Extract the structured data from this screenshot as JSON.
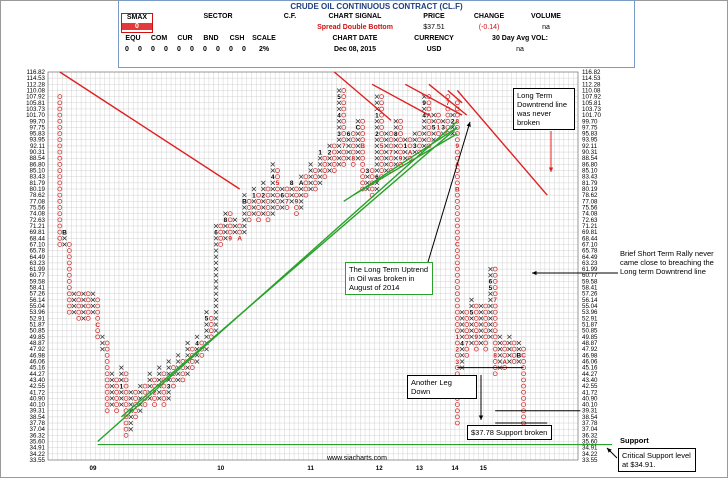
{
  "header": {
    "title": "CRUDE OIL CONTINUOUS CONTRACT (CL.F)",
    "smax_label": "SMAX",
    "smax_value": "0",
    "sector_label": "SECTOR",
    "cf_label": "C.F.",
    "chart_signal_label": "CHART SIGNAL",
    "price_label": "PRICE",
    "change_label": "CHANGE",
    "volume_label": "VOLUME",
    "chart_signal_value": "Spread Double Bottom",
    "price_value": "$37.51",
    "change_value": "(-0.14)",
    "volume_value": "na",
    "cols": [
      "EQU",
      "COM",
      "CUR",
      "BND",
      "CSH",
      "SCALE"
    ],
    "col_values": [
      "0",
      "0",
      "0",
      "0",
      "0",
      "0",
      "0",
      "0",
      "0",
      "0",
      "0"
    ],
    "scale_value": "2%",
    "chart_date_label": "CHART DATE",
    "chart_date_value": "Dec 08, 2015",
    "currency_label": "CURRENCY",
    "currency_value": "USD",
    "avg_vol_label": "30 Day Avg VOL:",
    "avg_vol_value": "na"
  },
  "colors": {
    "x": "#2a2a2a",
    "o": "#d02020",
    "grid": "#c8c8c8",
    "trend_red": "#e02020",
    "trend_green": "#2aa12a",
    "annot_blue": "#2060d0"
  },
  "chart_data": {
    "type": "point-and-figure",
    "y_ticks": [
      "116.82",
      "114.53",
      "112.28",
      "110.08",
      "107.92",
      "105.81",
      "103.73",
      "101.70",
      "99.70",
      "97.75",
      "95.83",
      "93.95",
      "92.11",
      "90.31",
      "88.54",
      "86.80",
      "85.10",
      "83.43",
      "81.79",
      "80.19",
      "78.62",
      "77.08",
      "75.56",
      "74.08",
      "72.63",
      "71.21",
      "69.81",
      "68.44",
      "67.10",
      "65.78",
      "64.49",
      "63.23",
      "61.99",
      "60.77",
      "59.58",
      "58.41",
      "57.26",
      "56.14",
      "55.04",
      "53.96",
      "52.91",
      "51.87",
      "50.85",
      "49.85",
      "48.87",
      "47.92",
      "46.98",
      "46.06",
      "45.16",
      "44.27",
      "43.40",
      "42.55",
      "41.72",
      "40.90",
      "40.10",
      "39.31",
      "38.54",
      "37.78",
      "37.04",
      "36.32",
      "35.60",
      "34.91",
      "34.22",
      "33.55"
    ],
    "x_labels": [
      {
        "label": "09",
        "col": 19
      },
      {
        "label": "10",
        "col": 73
      },
      {
        "label": "11",
        "col": 111
      },
      {
        "label": "12",
        "col": 140
      },
      {
        "label": "13",
        "col": 157
      },
      {
        "label": "14",
        "col": 172
      },
      {
        "label": "15",
        "col": 184
      }
    ],
    "columns": [
      {
        "col": 2,
        "type": "O",
        "top": "107.92",
        "bottom": "67.10"
      },
      {
        "col": 3,
        "type": "X",
        "top": "69.81",
        "bottom": "67.10",
        "marks": {
          "69.81": "B"
        }
      },
      {
        "col": 4,
        "type": "O",
        "top": "67.10",
        "bottom": "53.96"
      },
      {
        "col": 5,
        "type": "X",
        "top": "57.26",
        "bottom": "53.96"
      },
      {
        "col": 6,
        "type": "O",
        "top": "57.26",
        "bottom": "52.91"
      },
      {
        "col": 7,
        "type": "X",
        "top": "57.26",
        "bottom": "52.91"
      },
      {
        "col": 8,
        "type": "O",
        "top": "57.26",
        "bottom": "52.91"
      },
      {
        "col": 9,
        "type": "X",
        "top": "57.26",
        "bottom": "53.96"
      },
      {
        "col": 10,
        "type": "O",
        "top": "56.14",
        "bottom": "49.85",
        "marks": {
          "51.87": "C"
        }
      },
      {
        "col": 11,
        "type": "X",
        "top": "49.85",
        "bottom": "47.92"
      },
      {
        "col": 12,
        "type": "O",
        "top": "48.87",
        "bottom": "39.31"
      },
      {
        "col": 13,
        "type": "X",
        "top": "44.27",
        "bottom": "40.10"
      },
      {
        "col": 14,
        "type": "O",
        "top": "43.40",
        "bottom": "39.31"
      },
      {
        "col": 15,
        "type": "X",
        "top": "45.16",
        "bottom": "40.10",
        "marks": {
          "42.55": "1"
        }
      },
      {
        "col": 16,
        "type": "O",
        "top": "44.27",
        "bottom": "36.32"
      },
      {
        "col": 17,
        "type": "X",
        "top": "41.72",
        "bottom": "37.04"
      },
      {
        "col": 18,
        "type": "O",
        "top": "41.72",
        "bottom": "38.54"
      },
      {
        "col": 19,
        "type": "X",
        "top": "42.55",
        "bottom": "39.31"
      },
      {
        "col": 20,
        "type": "O",
        "top": "42.55",
        "bottom": "40.10"
      },
      {
        "col": 21,
        "type": "X",
        "top": "44.27",
        "bottom": "40.90"
      },
      {
        "col": 22,
        "type": "O",
        "top": "43.40",
        "bottom": "40.10",
        "marks": {
          "41.72": "2"
        }
      },
      {
        "col": 23,
        "type": "X",
        "top": "45.16",
        "bottom": "40.90"
      },
      {
        "col": 24,
        "type": "O",
        "top": "44.27",
        "bottom": "40.10"
      },
      {
        "col": 25,
        "type": "X",
        "top": "46.06",
        "bottom": "40.90",
        "marks": {
          "42.55": "3"
        }
      },
      {
        "col": 26,
        "type": "O",
        "top": "45.16",
        "bottom": "42.55"
      },
      {
        "col": 27,
        "type": "X",
        "top": "46.98",
        "bottom": "43.40"
      },
      {
        "col": 28,
        "type": "O",
        "top": "46.06",
        "bottom": "43.40"
      },
      {
        "col": 29,
        "type": "X",
        "top": "48.87",
        "bottom": "44.27"
      },
      {
        "col": 30,
        "type": "O",
        "top": "47.92",
        "bottom": "45.16"
      },
      {
        "col": 31,
        "type": "X",
        "top": "49.85",
        "bottom": "46.06",
        "marks": {
          "48.87": "4"
        }
      },
      {
        "col": 32,
        "type": "O",
        "top": "48.87",
        "bottom": "46.98"
      },
      {
        "col": 33,
        "type": "X",
        "top": "53.96",
        "bottom": "47.92",
        "marks": {
          "52.91": "5"
        }
      },
      {
        "col": 34,
        "type": "O",
        "top": "52.91",
        "bottom": "49.85"
      },
      {
        "col": 35,
        "type": "X",
        "top": "71.21",
        "bottom": "50.85",
        "marks": {
          "69.81": "6"
        }
      },
      {
        "col": 36,
        "type": "O",
        "top": "71.21",
        "bottom": "67.10"
      },
      {
        "col": 37,
        "type": "X",
        "top": "74.08",
        "bottom": "68.44",
        "marks": {
          "72.63": "8"
        }
      },
      {
        "col": 38,
        "type": "O",
        "top": "74.08",
        "bottom": "68.44",
        "marks": {
          "68.44": "9"
        }
      },
      {
        "col": 39,
        "type": "X",
        "top": "72.63",
        "bottom": "69.81"
      },
      {
        "col": 40,
        "type": "O",
        "top": "71.21",
        "bottom": "68.44",
        "marks": {
          "68.44": "A"
        }
      },
      {
        "col": 41,
        "type": "X",
        "top": "78.62",
        "bottom": "69.81",
        "marks": {
          "77.08": "B"
        }
      },
      {
        "col": 42,
        "type": "O",
        "top": "77.08",
        "bottom": "72.63"
      },
      {
        "col": 43,
        "type": "X",
        "top": "80.19",
        "bottom": "74.08",
        "marks": {
          "78.62": "1"
        }
      },
      {
        "col": 44,
        "type": "O",
        "top": "78.62",
        "bottom": "72.63"
      },
      {
        "col": 45,
        "type": "X",
        "top": "81.79",
        "bottom": "74.08",
        "marks": {
          "78.62": "2"
        }
      },
      {
        "col": 46,
        "type": "O",
        "top": "80.19",
        "bottom": "72.63"
      },
      {
        "col": 47,
        "type": "X",
        "top": "86.80",
        "bottom": "74.08",
        "marks": {
          "83.43": "4"
        }
      },
      {
        "col": 48,
        "type": "O",
        "top": "85.10",
        "bottom": "75.56",
        "marks": {
          "81.79": "5"
        }
      },
      {
        "col": 49,
        "type": "X",
        "top": "80.19",
        "bottom": "75.56",
        "marks": {
          "78.62": "6"
        }
      },
      {
        "col": 50,
        "type": "O",
        "top": "80.19",
        "bottom": "75.56",
        "marks": {
          "77.08": "7"
        }
      },
      {
        "col": 51,
        "type": "X",
        "top": "81.79",
        "bottom": "77.08",
        "marks": {
          "81.79": "8"
        }
      },
      {
        "col": 52,
        "type": "O",
        "top": "80.19",
        "bottom": "74.08",
        "marks": {
          "77.08": "9"
        }
      },
      {
        "col": 53,
        "type": "X",
        "top": "83.43",
        "bottom": "75.56",
        "marks": {
          "81.79": "A"
        }
      },
      {
        "col": 54,
        "type": "O",
        "top": "83.43",
        "bottom": "78.62"
      },
      {
        "col": 55,
        "type": "X",
        "top": "86.80",
        "bottom": "80.19"
      },
      {
        "col": 56,
        "type": "O",
        "top": "85.10",
        "bottom": "80.19"
      },
      {
        "col": 57,
        "type": "X",
        "top": "90.31",
        "bottom": "81.79",
        "marks": {
          "90.31": "1"
        }
      },
      {
        "col": 58,
        "type": "O",
        "top": "88.54",
        "bottom": "83.43"
      },
      {
        "col": 59,
        "type": "X",
        "top": "92.11",
        "bottom": "85.10",
        "marks": {
          "90.31": "2"
        }
      },
      {
        "col": 60,
        "type": "O",
        "top": "92.11",
        "bottom": "85.10"
      },
      {
        "col": 61,
        "type": "X",
        "top": "110.08",
        "bottom": "86.80",
        "marks": {
          "107.92": "5",
          "101.70": "4",
          "95.83": "3"
        }
      },
      {
        "col": 62,
        "type": "O",
        "top": "110.08",
        "bottom": "86.80",
        "marks": {
          "92.11": "7"
        }
      },
      {
        "col": 63,
        "type": "X",
        "top": "95.83",
        "bottom": "88.54",
        "marks": {
          "95.83": "6"
        }
      },
      {
        "col": 64,
        "type": "O",
        "top": "95.83",
        "bottom": "86.80",
        "marks": {
          "88.54": "8"
        }
      },
      {
        "col": 65,
        "type": "X",
        "top": "99.70",
        "bottom": "88.54",
        "marks": {
          "97.75": "C"
        }
      },
      {
        "col": 66,
        "type": "O",
        "top": "99.70",
        "bottom": "80.19",
        "marks": {
          "92.11": "B"
        }
      },
      {
        "col": 67,
        "type": "X",
        "top": "85.10",
        "bottom": "80.19",
        "marks": {
          "85.10": "3"
        }
      },
      {
        "col": 68,
        "type": "O",
        "top": "85.10",
        "bottom": "78.62"
      },
      {
        "col": 69,
        "type": "X",
        "top": "107.92",
        "bottom": "80.19",
        "marks": {
          "101.70": "1",
          "95.83": "2",
          "83.43": "6"
        }
      },
      {
        "col": 70,
        "type": "O",
        "top": "107.92",
        "bottom": "83.43",
        "marks": {
          "92.11": "5"
        }
      },
      {
        "col": 71,
        "type": "X",
        "top": "95.83",
        "bottom": "85.10"
      },
      {
        "col": 72,
        "type": "O",
        "top": "95.83",
        "bottom": "85.10",
        "marks": {
          "90.31": "7"
        }
      },
      {
        "col": 73,
        "type": "X",
        "top": "99.70",
        "bottom": "86.80",
        "marks": {
          "95.83": "8"
        }
      },
      {
        "col": 74,
        "type": "O",
        "top": "99.70",
        "bottom": "86.80",
        "marks": {
          "88.54": "9"
        }
      },
      {
        "col": 75,
        "type": "X",
        "top": "93.95",
        "bottom": "88.54",
        "marks": {
          "92.11": "1"
        }
      },
      {
        "col": 76,
        "type": "O",
        "top": "93.95",
        "bottom": "88.54",
        "marks": {
          "90.31": "A"
        }
      },
      {
        "col": 77,
        "type": "X",
        "top": "95.83",
        "bottom": "90.31",
        "marks": {
          "92.11": "3"
        }
      },
      {
        "col": 78,
        "type": "O",
        "top": "95.83",
        "bottom": "90.31"
      },
      {
        "col": 79,
        "type": "X",
        "top": "107.92",
        "bottom": "92.11",
        "marks": {
          "105.81": "9",
          "101.70": "4"
        }
      },
      {
        "col": 80,
        "type": "O",
        "top": "107.92",
        "bottom": "92.11",
        "marks": {
          "101.70": "A"
        }
      },
      {
        "col": 81,
        "type": "X",
        "top": "101.70",
        "bottom": "93.95",
        "marks": {
          "97.75": "5"
        }
      },
      {
        "col": 82,
        "type": "O",
        "top": "101.70",
        "bottom": "95.83",
        "marks": {
          "97.75": "1"
        }
      },
      {
        "col": 83,
        "type": "X",
        "top": "99.70",
        "bottom": "95.83",
        "marks": {
          "97.75": "3"
        }
      },
      {
        "col": 84,
        "type": "O",
        "top": "107.92",
        "bottom": "95.83",
        "marks": {
          "105.81": "7"
        }
      },
      {
        "col": 85,
        "type": "X",
        "top": "101.70",
        "bottom": "95.83",
        "marks": {
          "99.70": "2"
        }
      },
      {
        "col": 86,
        "type": "O",
        "top": "105.81",
        "bottom": "37.78",
        "marks": {
          "99.70": "8",
          "92.11": "9",
          "86.80": "A",
          "80.19": "B",
          "67.10": "C",
          "49.85": "1",
          "47.92": "2",
          "46.06": "3"
        }
      },
      {
        "col": 87,
        "type": "X",
        "top": "53.96",
        "bottom": "45.16",
        "marks": {
          "48.87": "4"
        }
      },
      {
        "col": 88,
        "type": "O",
        "top": "53.96",
        "bottom": "46.98",
        "marks": {
          "48.87": "7"
        }
      },
      {
        "col": 89,
        "type": "X",
        "top": "56.14",
        "bottom": "48.87",
        "marks": {
          "53.96": "5"
        }
      },
      {
        "col": 90,
        "type": "O",
        "top": "55.04",
        "bottom": "47.92",
        "marks": {
          "49.85": "9"
        }
      },
      {
        "col": 91,
        "type": "X",
        "top": "55.04",
        "bottom": "48.87"
      },
      {
        "col": 92,
        "type": "O",
        "top": "55.04",
        "bottom": "47.92"
      },
      {
        "col": 93,
        "type": "X",
        "top": "61.99",
        "bottom": "49.85",
        "marks": {
          "59.58": "6",
          "58.41": "5"
        }
      },
      {
        "col": 94,
        "type": "O",
        "top": "61.99",
        "bottom": "44.27",
        "marks": {
          "56.14": "7",
          "46.98": "8"
        }
      },
      {
        "col": 95,
        "type": "X",
        "top": "49.85",
        "bottom": "45.16"
      },
      {
        "col": 96,
        "type": "O",
        "top": "48.87",
        "bottom": "45.16",
        "marks": {
          "46.06": "A"
        }
      },
      {
        "col": 97,
        "type": "X",
        "top": "49.85",
        "bottom": "46.06"
      },
      {
        "col": 98,
        "type": "O",
        "top": "48.87",
        "bottom": "46.06"
      },
      {
        "col": 99,
        "type": "X",
        "top": "48.87",
        "bottom": "46.06",
        "marks": {
          "46.98": "B"
        }
      },
      {
        "col": 100,
        "type": "O",
        "top": "47.92",
        "bottom": "37.78",
        "marks": {
          "46.98": "C"
        }
      }
    ],
    "trend_lines_red": [
      {
        "from": [
          "col",
          2,
          "116.82"
        ],
        "to": [
          "col",
          40,
          "80.19"
        ]
      },
      {
        "from": [
          "col",
          60,
          "116.82"
        ],
        "to": [
          "col",
          72,
          "100.00"
        ]
      },
      {
        "from": [
          "col",
          68,
          "112.28"
        ],
        "to": [
          "col",
          80,
          "101.70"
        ]
      },
      {
        "from": [
          "col",
          75,
          "112.28"
        ],
        "to": [
          "col",
          87,
          "101.70"
        ]
      },
      {
        "from": [
          "col",
          80,
          "112.28"
        ],
        "to": [
          "col",
          88,
          "101.70"
        ]
      },
      {
        "from": [
          "col",
          84,
          "110.08"
        ],
        "to": [
          "col",
          87,
          "105.81"
        ]
      },
      {
        "from": [
          "col",
          86,
          "110.08"
        ],
        "to": [
          "col",
          105,
          "78.62"
        ]
      }
    ],
    "trend_lines_green": [
      {
        "from": [
          "col",
          10,
          "35.60"
        ],
        "to": [
          "col",
          86,
          "99.70"
        ]
      },
      {
        "from": [
          "col",
          15,
          "38.54"
        ],
        "to": [
          "col",
          86,
          "97.75"
        ]
      },
      {
        "from": [
          "col",
          62,
          "77.08"
        ],
        "to": [
          "col",
          86,
          "97.75"
        ]
      },
      {
        "from": [
          "col",
          64,
          "78.62"
        ],
        "to": [
          "col",
          86,
          "95.83"
        ]
      }
    ],
    "support_line": {
      "value": "35.26",
      "label": "Support"
    },
    "horizontal_lines": [
      {
        "from_col": 86,
        "to_col": 100,
        "value": "45.16"
      },
      {
        "from_col": 94,
        "to_col": 112,
        "value": "39.31"
      },
      {
        "from_col": 94,
        "to_col": 105,
        "value": "37.78"
      }
    ],
    "watermark": "www.siacharts.com",
    "annotations": [
      {
        "id": "ann-long-term-downtrend",
        "text": "Long Term Downtrend line was never broken",
        "style": "black"
      },
      {
        "id": "ann-uptrend-broken",
        "text": "The Long Term Uptrend in Oil was broken in August of 2014",
        "style": "green"
      },
      {
        "id": "ann-brief-rally",
        "text": "Brief Short Term Rally never came close to breaching the Long term Downtrend line",
        "style": "plain"
      },
      {
        "id": "ann-another-leg",
        "text": "Another Leg Down",
        "style": "black"
      },
      {
        "id": "ann-support-broken",
        "text": "$37.78 Support broken",
        "style": "black"
      },
      {
        "id": "ann-critical-support",
        "text": "Critical Support level at $34.91.",
        "style": "black"
      }
    ]
  }
}
